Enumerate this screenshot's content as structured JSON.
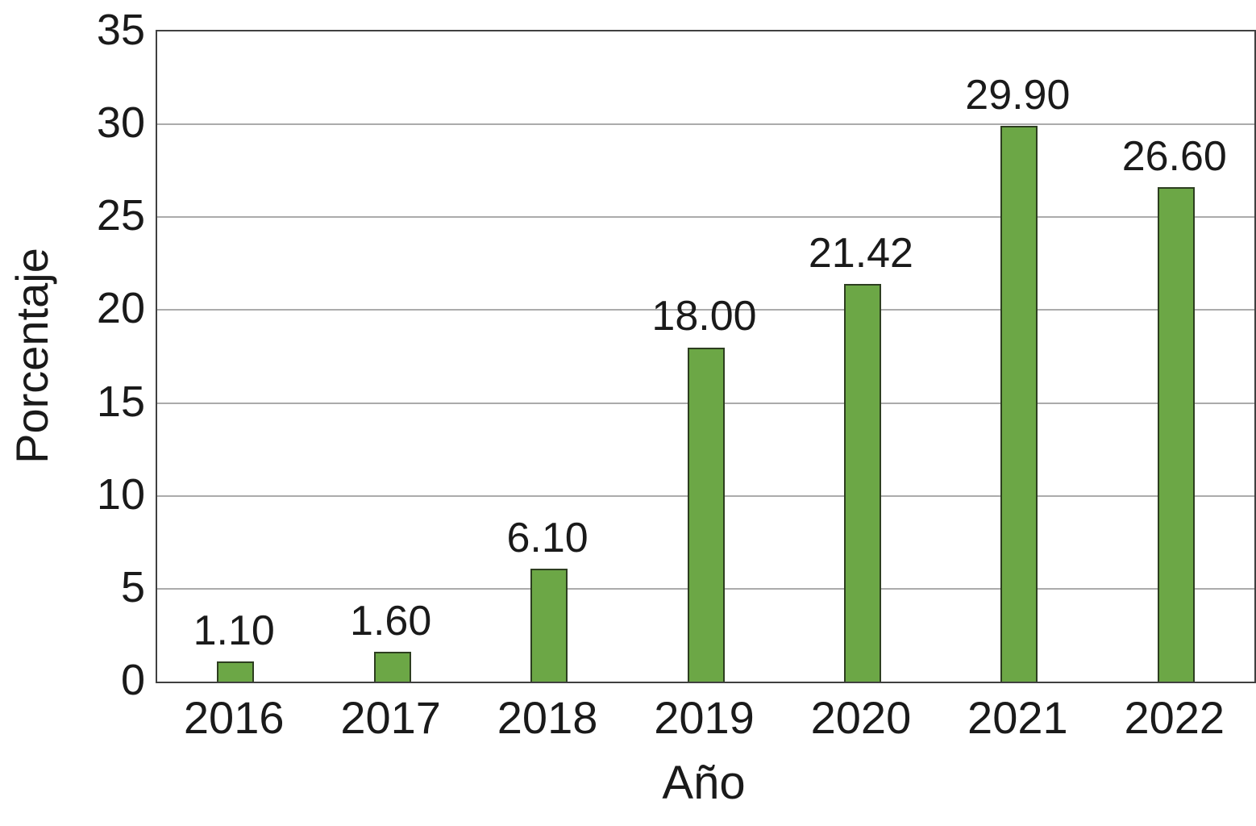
{
  "chart_data": {
    "type": "bar",
    "title": "",
    "xlabel": "Año",
    "ylabel": "Porcentaje",
    "categories": [
      "2016",
      "2017",
      "2018",
      "2019",
      "2020",
      "2021",
      "2022"
    ],
    "values": [
      1.1,
      1.6,
      6.1,
      18.0,
      21.42,
      29.9,
      26.6
    ],
    "value_labels": [
      "1.10",
      "1.60",
      "6.10",
      "18.00",
      "21.42",
      "29.90",
      "26.60"
    ],
    "y_ticks": [
      0,
      5,
      10,
      15,
      20,
      25,
      30,
      35
    ],
    "ylim": [
      0,
      35
    ],
    "grid": "horizontal gridlines at each y tick",
    "legend": "none",
    "colors": {
      "bar_fill": "#6CA746",
      "bar_border": "#2D3E20",
      "gridline": "#ababab",
      "frame": "#404040",
      "text": "#1a1a1a",
      "background": "#ffffff"
    }
  }
}
